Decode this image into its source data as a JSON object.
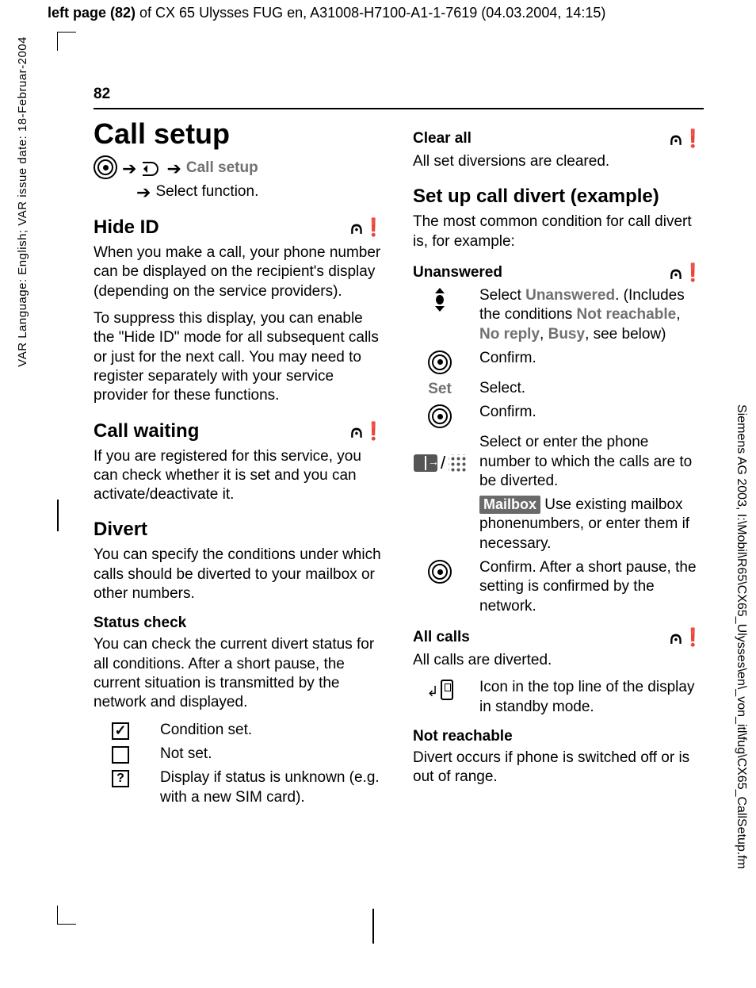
{
  "meta": {
    "top_prefix": "left page (82)",
    "top_rest": " of CX 65 Ulysses FUG en, A31008-H7100-A1-1-7619 (04.03.2004, 14:15)",
    "side_left": "VAR Language: English; VAR issue date: 18-Februar-2004",
    "side_right": "Siemens AG 2003, I:\\Mobil\\R65\\CX65_Ulysses\\en\\_von_itl\\fug\\CX65_CallSetup.fm"
  },
  "page_number": "82",
  "net_icon": "⩀❗",
  "h1": "Call setup",
  "nav": {
    "call_setup": "Call setup",
    "select_function": "Select function."
  },
  "left": {
    "hide_id_h": "Hide ID",
    "hide_id_p1": "When you make a call, your phone number can be displayed on the recipient's display (depending on the service providers).",
    "hide_id_p2": "To suppress this display, you can enable the \"Hide ID\" mode for all subsequent calls or just for the next call. You may need to register separately with your service provider for these functions.",
    "call_waiting_h": "Call waiting",
    "call_waiting_p": "If you are registered for this service, you can check whether it is set and you can activate/deactivate it.",
    "divert_h": "Divert",
    "divert_p": "You can specify the conditions under which calls should be diverted to your mailbox or other numbers.",
    "status_check_h": "Status check",
    "status_check_p": "You can check the current divert status for all conditions. After a short pause, the current situation is transmitted by the network and displayed.",
    "status_set": "Condition set.",
    "status_notset": "Not set.",
    "status_unknown": "Display if status is unknown (e.g. with a new SIM card)."
  },
  "right": {
    "clear_all_h": "Clear all",
    "clear_all_p": "All set diversions are cleared.",
    "setup_h": "Set up call divert (example)",
    "setup_p": "The most common condition for call divert is, for example:",
    "unanswered_h": "Unanswered",
    "step1a": "Select ",
    "step1b": "Unanswered",
    "step1c": ". (Includes the conditions ",
    "step1d": "Not reachable",
    "step1e": ", ",
    "step1f": "No reply",
    "step1g": ", ",
    "step1h": "Busy",
    "step1i": ", see below)",
    "confirm": "Confirm.",
    "set_label": "Set",
    "select": "Select.",
    "step_phone": "Select or enter the phone number to which the calls are to be diverted.",
    "mailbox_label": "Mailbox",
    "mailbox_text": " Use existing mailbox phonenumbers, or enter them if necessary.",
    "confirm_long": "Confirm. After a short pause, the setting is confirmed by the network.",
    "all_calls_h": "All calls",
    "all_calls_p": "All calls are diverted.",
    "all_calls_icon": "Icon in the top line of the display in standby mode.",
    "not_reachable_h": "Not reachable",
    "not_reachable_p": "Divert occurs if phone is switched off or is out of range."
  }
}
